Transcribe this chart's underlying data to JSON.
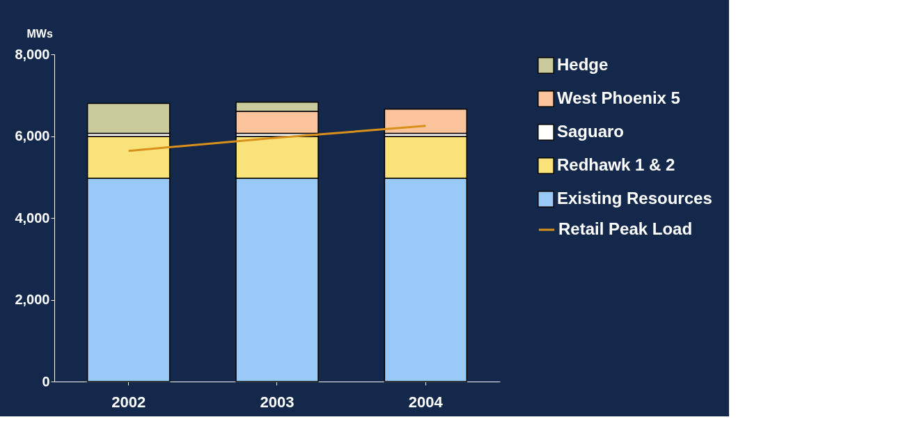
{
  "chart_data": {
    "type": "bar",
    "stacked": true,
    "ylabel": "MWs",
    "categories": [
      "2002",
      "2003",
      "2004"
    ],
    "series": [
      {
        "name": "Existing Resources",
        "color": "#99c9f7",
        "values": [
          4970,
          4970,
          4970
        ]
      },
      {
        "name": "Redhawk 1 & 2",
        "color": "#f9e27a",
        "values": [
          1020,
          1020,
          1020
        ]
      },
      {
        "name": "Saguaro",
        "color": "#ffffff",
        "values": [
          80,
          80,
          80
        ]
      },
      {
        "name": "West Phoenix 5",
        "color": "#fbc49c",
        "values": [
          null,
          540,
          590
        ]
      },
      {
        "name": "Hedge",
        "color": "#c9cb9c",
        "values": [
          730,
          220,
          null
        ]
      },
      {
        "name": "Retail Peak Load",
        "type": "line",
        "color": "#d9901a",
        "values": [
          5640,
          5960,
          6250
        ]
      }
    ],
    "ylim": [
      0,
      8000
    ],
    "yticks": [
      {
        "value": 0,
        "label": "0"
      },
      {
        "value": 2000,
        "label": "2,000"
      },
      {
        "value": 4000,
        "label": "4,000"
      },
      {
        "value": 6000,
        "label": "6,000"
      },
      {
        "value": 8000,
        "label": "8,000"
      }
    ],
    "legend": "right",
    "grid": false
  }
}
